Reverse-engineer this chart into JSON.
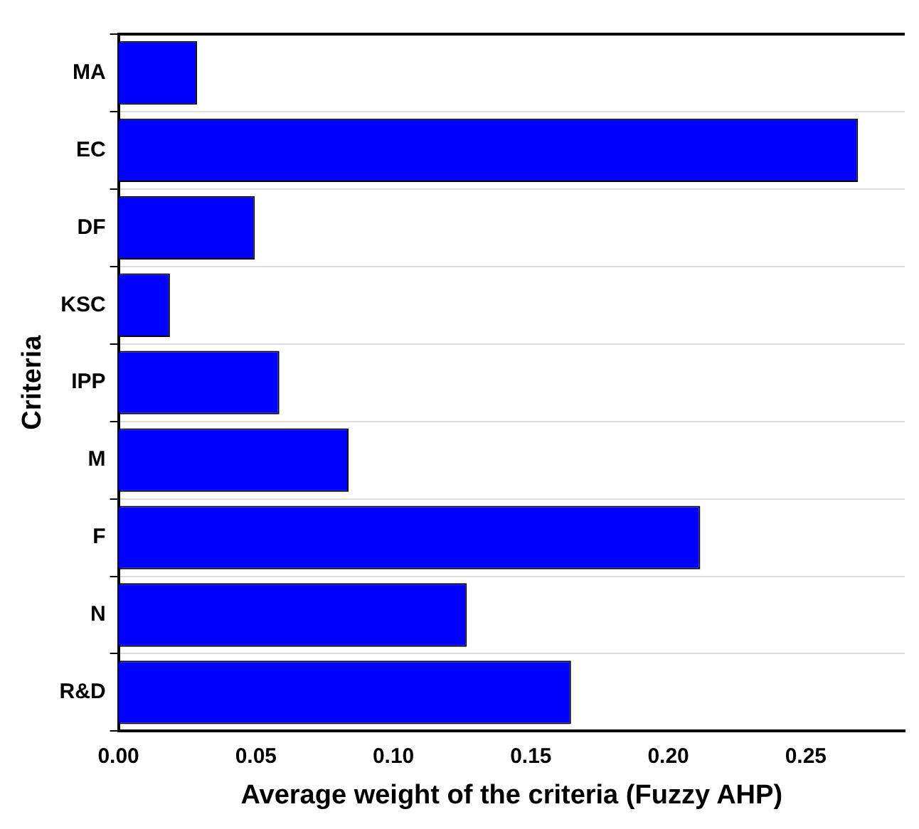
{
  "chart_data": {
    "type": "bar",
    "orientation": "horizontal",
    "xlabel": "Average weight of the criteria (Fuzzy AHP)",
    "ylabel": "Criteria",
    "categories": [
      "MA",
      "EC",
      "DF",
      "KSC",
      "IPP",
      "M",
      "F",
      "N",
      "R&D"
    ],
    "values": [
      0.0286,
      0.269,
      0.0496,
      0.0187,
      0.0585,
      0.0837,
      0.2116,
      0.1267,
      0.1646
    ],
    "color": "#0000ff",
    "xlim": [
      0,
      0.286
    ],
    "xticks": [
      {
        "value": 0,
        "label": "0.00"
      },
      0.05,
      {
        "value": 0.1,
        "label": "0.10"
      },
      0.15,
      {
        "value": 0.2,
        "label": "0.20"
      },
      0.25
    ],
    "grid": "y",
    "legend": false
  }
}
